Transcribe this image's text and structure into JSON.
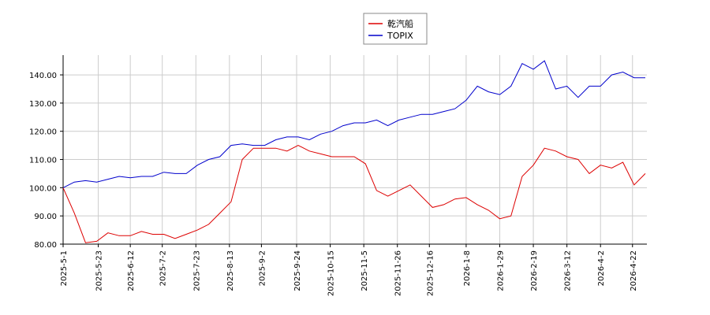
{
  "chart_data": {
    "type": "line",
    "x": [
      "2025-05-01",
      "2025-05-08",
      "2025-05-15",
      "2025-05-22",
      "2025-05-29",
      "2025-06-05",
      "2025-06-12",
      "2025-06-19",
      "2025-06-26",
      "2025-07-03",
      "2025-07-10",
      "2025-07-17",
      "2025-07-24",
      "2025-07-31",
      "2025-08-07",
      "2025-08-14",
      "2025-08-21",
      "2025-08-28",
      "2025-09-04",
      "2025-09-11",
      "2025-09-18",
      "2025-09-25",
      "2025-10-02",
      "2025-10-09",
      "2025-10-16",
      "2025-10-23",
      "2025-10-30",
      "2025-11-06",
      "2025-11-13",
      "2025-11-20",
      "2025-11-27",
      "2025-12-04",
      "2025-12-11",
      "2025-12-18",
      "2025-12-25",
      "2026-01-01",
      "2026-01-08",
      "2026-01-15",
      "2026-01-22",
      "2026-01-29",
      "2026-02-05",
      "2026-02-12",
      "2026-02-19",
      "2026-02-26",
      "2026-03-05",
      "2026-03-12",
      "2026-03-19",
      "2026-03-26",
      "2026-04-02",
      "2026-04-09",
      "2026-04-16",
      "2026-04-23",
      "2026-04-30"
    ],
    "series": [
      {
        "name": "乾汽船",
        "color": "#dd0000",
        "values": [
          100,
          91,
          80.5,
          81,
          84,
          83,
          83,
          84.5,
          83.5,
          83.5,
          82,
          83.5,
          85,
          87,
          91,
          95,
          110,
          114,
          114,
          114,
          113,
          115,
          113,
          112,
          111,
          111,
          111,
          108.5,
          99,
          97,
          99,
          101,
          97,
          93,
          94,
          96,
          96.5,
          94,
          92,
          89,
          90,
          104,
          108,
          114,
          113,
          111,
          110,
          105,
          108,
          107,
          109,
          101,
          105
        ]
      },
      {
        "name": "TOPIX",
        "color": "#0000cc",
        "values": [
          100,
          102,
          102.5,
          102,
          103,
          104,
          103.5,
          104,
          104,
          105.5,
          105,
          105,
          108,
          110,
          111,
          115,
          115.5,
          115,
          115,
          117,
          118,
          118,
          117,
          119,
          120,
          122,
          123,
          123,
          124,
          122,
          124,
          125,
          126,
          126,
          127,
          128,
          131,
          136,
          134,
          133,
          136,
          144,
          142,
          145,
          135,
          136,
          132,
          136,
          136,
          140,
          141,
          139,
          139
        ]
      }
    ],
    "xlim": [
      "2025-05-01",
      "2026-05-01"
    ],
    "xticks": [
      {
        "value": "2025-05-01",
        "label": "2025-5-1"
      },
      {
        "value": "2025-05-23",
        "label": "2025-5-23"
      },
      {
        "value": "2025-06-12",
        "label": "2025-6-12"
      },
      {
        "value": "2025-07-02",
        "label": "2025-7-2"
      },
      {
        "value": "2025-07-23",
        "label": "2025-7-23"
      },
      {
        "value": "2025-08-13",
        "label": "2025-8-13"
      },
      {
        "value": "2025-09-02",
        "label": "2025-9-2"
      },
      {
        "value": "2025-09-24",
        "label": "2025-9-24"
      },
      {
        "value": "2025-10-15",
        "label": "2025-10-15"
      },
      {
        "value": "2025-11-05",
        "label": "2025-11-5"
      },
      {
        "value": "2025-11-26",
        "label": "2025-11-26"
      },
      {
        "value": "2025-12-16",
        "label": "2025-12-16"
      },
      {
        "value": "2026-01-08",
        "label": "2026-1-8"
      },
      {
        "value": "2026-01-29",
        "label": "2026-1-29"
      },
      {
        "value": "2026-02-19",
        "label": "2026-2-19"
      },
      {
        "value": "2026-03-12",
        "label": "2026-3-12"
      },
      {
        "value": "2026-04-02",
        "label": "2026-4-2"
      },
      {
        "value": "2026-04-22",
        "label": "2026-4-22"
      }
    ],
    "ylim": [
      80,
      147
    ],
    "yticks": [
      {
        "value": 80,
        "label": "80.00"
      },
      {
        "value": 90,
        "label": "90.00"
      },
      {
        "value": 100,
        "label": "100.00"
      },
      {
        "value": 110,
        "label": "110.00"
      },
      {
        "value": 120,
        "label": "120.00"
      },
      {
        "value": 130,
        "label": "130.00"
      },
      {
        "value": 140,
        "label": "140.00"
      }
    ],
    "grid": true,
    "legend": "top"
  }
}
